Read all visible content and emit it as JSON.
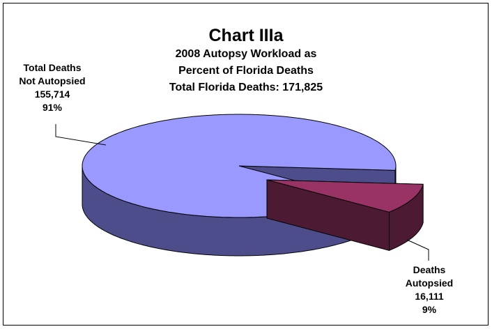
{
  "chart_data": {
    "type": "pie",
    "title": "Chart IIIa",
    "subtitle": [
      "2008 Autopsy Workload as",
      "Percent of Florida Deaths",
      "Total Florida Deaths:  171,825"
    ],
    "categories": [
      "Total Deaths Not Autopsied",
      "Deaths Autopsied"
    ],
    "values": [
      155714,
      16111
    ],
    "value_labels": [
      "155,714",
      "16,111"
    ],
    "percents": [
      91,
      9
    ],
    "percent_labels": [
      "91%",
      "9%"
    ],
    "colors": [
      "#9999ff",
      "#993366"
    ],
    "side_colors": [
      "#4d4d8c",
      "#4d1a33"
    ],
    "exploded": [
      false,
      true
    ],
    "three_d": true
  }
}
